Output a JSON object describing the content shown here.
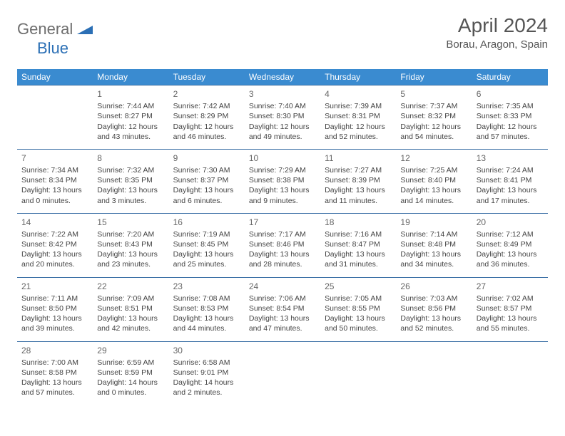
{
  "logo": {
    "part1": "General",
    "part2": "Blue"
  },
  "title": "April 2024",
  "location": "Borau, Aragon, Spain",
  "colors": {
    "header_bg": "#3a8bd0",
    "header_text": "#ffffff",
    "row_border": "#3a6fa5",
    "text": "#444444",
    "logo_gray": "#6e6e6e",
    "logo_blue": "#2b6fb5"
  },
  "weekdays": [
    "Sunday",
    "Monday",
    "Tuesday",
    "Wednesday",
    "Thursday",
    "Friday",
    "Saturday"
  ],
  "weeks": [
    [
      null,
      {
        "n": "1",
        "sr": "Sunrise: 7:44 AM",
        "ss": "Sunset: 8:27 PM",
        "d1": "Daylight: 12 hours",
        "d2": "and 43 minutes."
      },
      {
        "n": "2",
        "sr": "Sunrise: 7:42 AM",
        "ss": "Sunset: 8:29 PM",
        "d1": "Daylight: 12 hours",
        "d2": "and 46 minutes."
      },
      {
        "n": "3",
        "sr": "Sunrise: 7:40 AM",
        "ss": "Sunset: 8:30 PM",
        "d1": "Daylight: 12 hours",
        "d2": "and 49 minutes."
      },
      {
        "n": "4",
        "sr": "Sunrise: 7:39 AM",
        "ss": "Sunset: 8:31 PM",
        "d1": "Daylight: 12 hours",
        "d2": "and 52 minutes."
      },
      {
        "n": "5",
        "sr": "Sunrise: 7:37 AM",
        "ss": "Sunset: 8:32 PM",
        "d1": "Daylight: 12 hours",
        "d2": "and 54 minutes."
      },
      {
        "n": "6",
        "sr": "Sunrise: 7:35 AM",
        "ss": "Sunset: 8:33 PM",
        "d1": "Daylight: 12 hours",
        "d2": "and 57 minutes."
      }
    ],
    [
      {
        "n": "7",
        "sr": "Sunrise: 7:34 AM",
        "ss": "Sunset: 8:34 PM",
        "d1": "Daylight: 13 hours",
        "d2": "and 0 minutes."
      },
      {
        "n": "8",
        "sr": "Sunrise: 7:32 AM",
        "ss": "Sunset: 8:35 PM",
        "d1": "Daylight: 13 hours",
        "d2": "and 3 minutes."
      },
      {
        "n": "9",
        "sr": "Sunrise: 7:30 AM",
        "ss": "Sunset: 8:37 PM",
        "d1": "Daylight: 13 hours",
        "d2": "and 6 minutes."
      },
      {
        "n": "10",
        "sr": "Sunrise: 7:29 AM",
        "ss": "Sunset: 8:38 PM",
        "d1": "Daylight: 13 hours",
        "d2": "and 9 minutes."
      },
      {
        "n": "11",
        "sr": "Sunrise: 7:27 AM",
        "ss": "Sunset: 8:39 PM",
        "d1": "Daylight: 13 hours",
        "d2": "and 11 minutes."
      },
      {
        "n": "12",
        "sr": "Sunrise: 7:25 AM",
        "ss": "Sunset: 8:40 PM",
        "d1": "Daylight: 13 hours",
        "d2": "and 14 minutes."
      },
      {
        "n": "13",
        "sr": "Sunrise: 7:24 AM",
        "ss": "Sunset: 8:41 PM",
        "d1": "Daylight: 13 hours",
        "d2": "and 17 minutes."
      }
    ],
    [
      {
        "n": "14",
        "sr": "Sunrise: 7:22 AM",
        "ss": "Sunset: 8:42 PM",
        "d1": "Daylight: 13 hours",
        "d2": "and 20 minutes."
      },
      {
        "n": "15",
        "sr": "Sunrise: 7:20 AM",
        "ss": "Sunset: 8:43 PM",
        "d1": "Daylight: 13 hours",
        "d2": "and 23 minutes."
      },
      {
        "n": "16",
        "sr": "Sunrise: 7:19 AM",
        "ss": "Sunset: 8:45 PM",
        "d1": "Daylight: 13 hours",
        "d2": "and 25 minutes."
      },
      {
        "n": "17",
        "sr": "Sunrise: 7:17 AM",
        "ss": "Sunset: 8:46 PM",
        "d1": "Daylight: 13 hours",
        "d2": "and 28 minutes."
      },
      {
        "n": "18",
        "sr": "Sunrise: 7:16 AM",
        "ss": "Sunset: 8:47 PM",
        "d1": "Daylight: 13 hours",
        "d2": "and 31 minutes."
      },
      {
        "n": "19",
        "sr": "Sunrise: 7:14 AM",
        "ss": "Sunset: 8:48 PM",
        "d1": "Daylight: 13 hours",
        "d2": "and 34 minutes."
      },
      {
        "n": "20",
        "sr": "Sunrise: 7:12 AM",
        "ss": "Sunset: 8:49 PM",
        "d1": "Daylight: 13 hours",
        "d2": "and 36 minutes."
      }
    ],
    [
      {
        "n": "21",
        "sr": "Sunrise: 7:11 AM",
        "ss": "Sunset: 8:50 PM",
        "d1": "Daylight: 13 hours",
        "d2": "and 39 minutes."
      },
      {
        "n": "22",
        "sr": "Sunrise: 7:09 AM",
        "ss": "Sunset: 8:51 PM",
        "d1": "Daylight: 13 hours",
        "d2": "and 42 minutes."
      },
      {
        "n": "23",
        "sr": "Sunrise: 7:08 AM",
        "ss": "Sunset: 8:53 PM",
        "d1": "Daylight: 13 hours",
        "d2": "and 44 minutes."
      },
      {
        "n": "24",
        "sr": "Sunrise: 7:06 AM",
        "ss": "Sunset: 8:54 PM",
        "d1": "Daylight: 13 hours",
        "d2": "and 47 minutes."
      },
      {
        "n": "25",
        "sr": "Sunrise: 7:05 AM",
        "ss": "Sunset: 8:55 PM",
        "d1": "Daylight: 13 hours",
        "d2": "and 50 minutes."
      },
      {
        "n": "26",
        "sr": "Sunrise: 7:03 AM",
        "ss": "Sunset: 8:56 PM",
        "d1": "Daylight: 13 hours",
        "d2": "and 52 minutes."
      },
      {
        "n": "27",
        "sr": "Sunrise: 7:02 AM",
        "ss": "Sunset: 8:57 PM",
        "d1": "Daylight: 13 hours",
        "d2": "and 55 minutes."
      }
    ],
    [
      {
        "n": "28",
        "sr": "Sunrise: 7:00 AM",
        "ss": "Sunset: 8:58 PM",
        "d1": "Daylight: 13 hours",
        "d2": "and 57 minutes."
      },
      {
        "n": "29",
        "sr": "Sunrise: 6:59 AM",
        "ss": "Sunset: 8:59 PM",
        "d1": "Daylight: 14 hours",
        "d2": "and 0 minutes."
      },
      {
        "n": "30",
        "sr": "Sunrise: 6:58 AM",
        "ss": "Sunset: 9:01 PM",
        "d1": "Daylight: 14 hours",
        "d2": "and 2 minutes."
      },
      null,
      null,
      null,
      null
    ]
  ]
}
